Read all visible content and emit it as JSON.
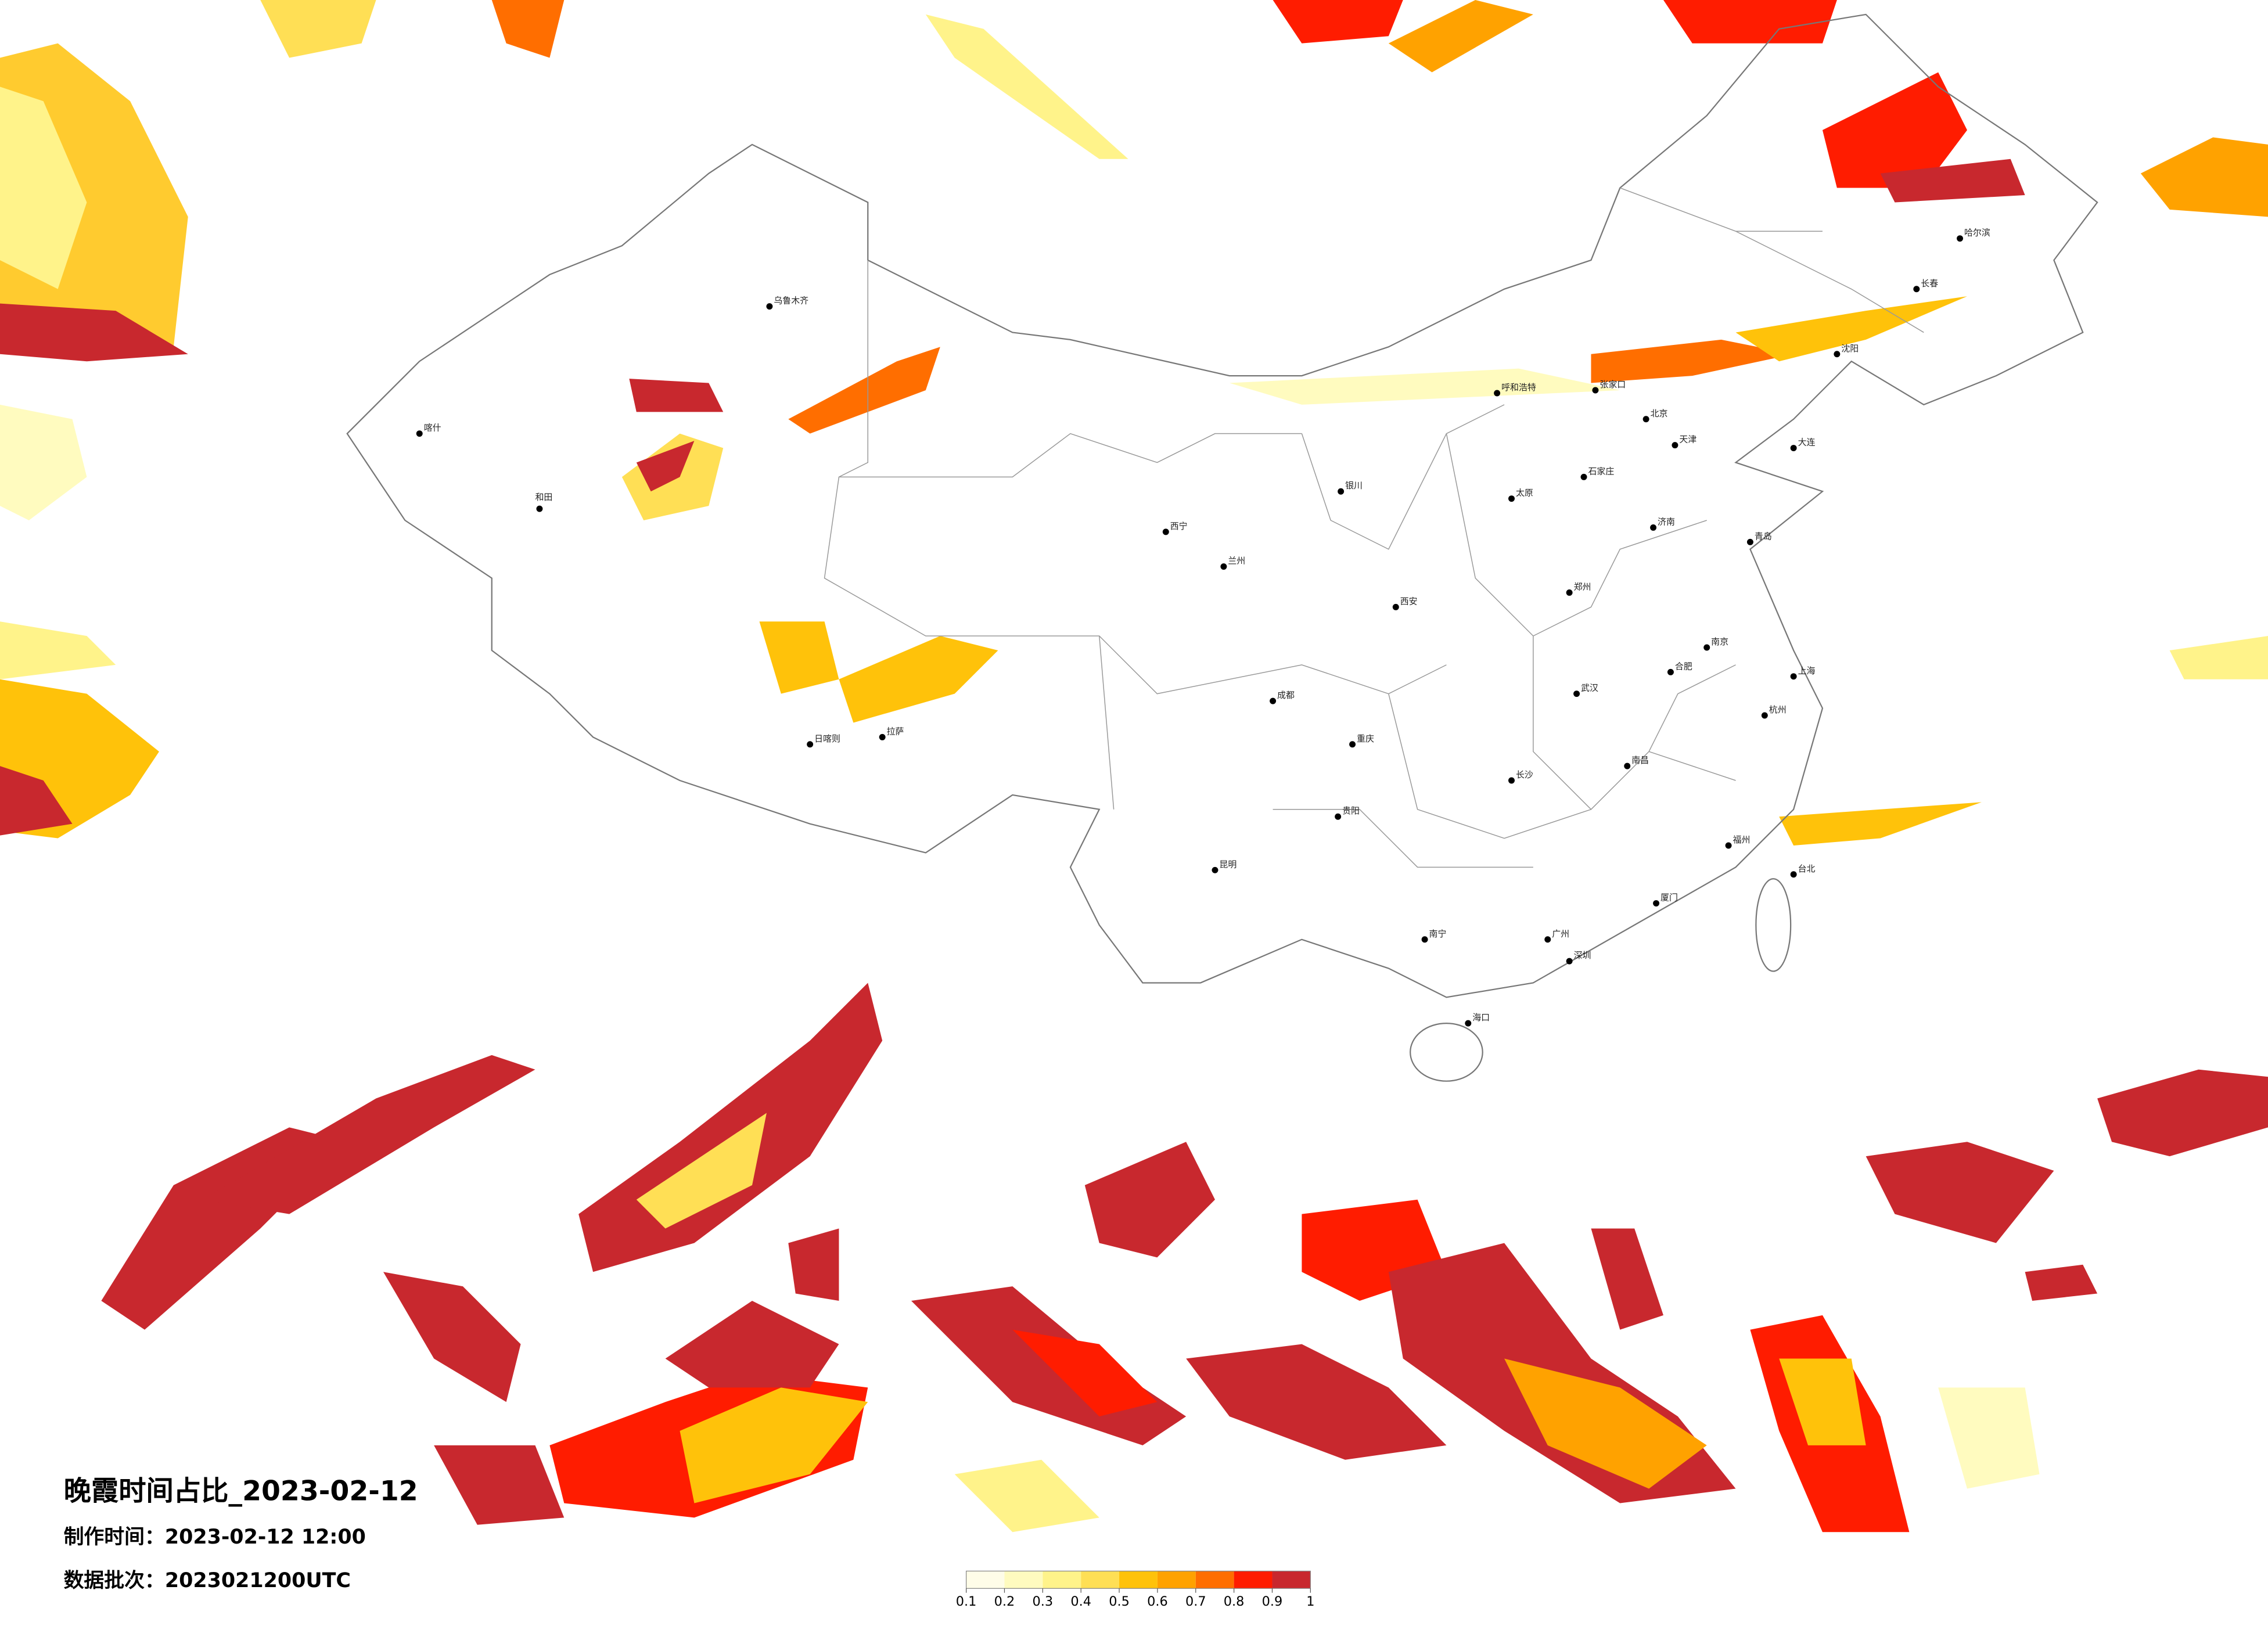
{
  "title": "晚霞时间占比_2023-02-12",
  "made_time": "制作时间：2023-02-12 12:00",
  "data_batch": "数据批次：2023021200UTC",
  "colorbar": {
    "ticks": [
      0.1,
      0.2,
      0.3,
      0.4,
      0.5,
      0.6,
      0.7,
      0.8,
      0.9,
      1
    ],
    "colors": [
      "#fffde8",
      "#fffbbf",
      "#fff38a",
      "#ffdf55",
      "#ffc20a",
      "#ffa200",
      "#ff6e00",
      "#ff1c00",
      "#c8282e"
    ]
  },
  "cities": [
    "北京",
    "天津",
    "石家庄",
    "太原",
    "呼和浩特",
    "沈阳",
    "长春",
    "哈尔滨",
    "济南",
    "郑州",
    "西安",
    "兰州",
    "西宁",
    "银川",
    "乌鲁木齐",
    "拉萨",
    "成都",
    "重庆",
    "昆明",
    "贵阳",
    "南宁",
    "广州",
    "海口",
    "长沙",
    "武汉",
    "南京",
    "上海",
    "杭州",
    "福州",
    "南昌",
    "合肥",
    "台北",
    "喀什",
    "和田",
    "张家口",
    "大连",
    "青岛",
    "厦门",
    "深圳",
    "日喀则"
  ]
}
